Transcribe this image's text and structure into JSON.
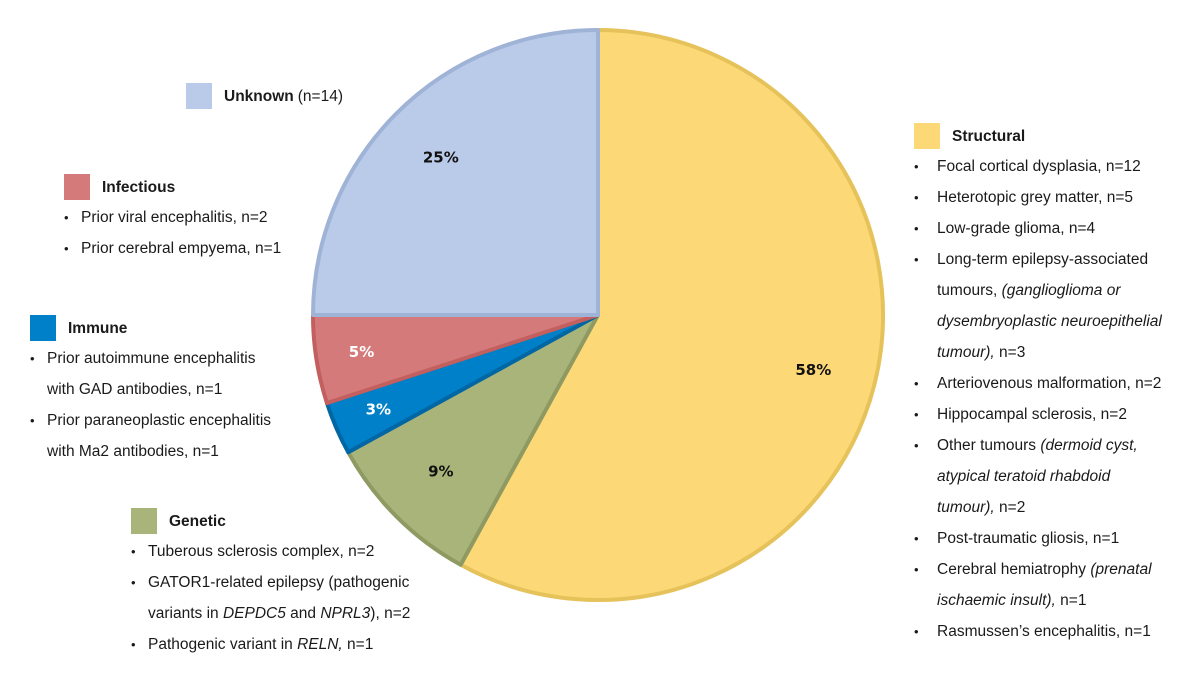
{
  "chart_data": {
    "type": "pie",
    "title": "",
    "slices": [
      {
        "label": "Structural",
        "value": 58,
        "pct_label": "58%",
        "color": "#fcd976",
        "stroke": "#e6c25a"
      },
      {
        "label": "Genetic",
        "value": 9,
        "pct_label": "9%",
        "color": "#a9b47b",
        "stroke": "#8f9a63"
      },
      {
        "label": "Immune",
        "value": 3,
        "pct_label": "3%",
        "color": "#0080c8",
        "stroke": "#0066a4",
        "label_color": "#ffffff"
      },
      {
        "label": "Infectious",
        "value": 5,
        "pct_label": "5%",
        "color": "#d57a7a",
        "stroke": "#c35f5f",
        "label_color": "#ffffff"
      },
      {
        "label": "Unknown",
        "value": 25,
        "pct_label": "25%",
        "color": "#b9cbe9",
        "stroke": "#9fb3d6"
      }
    ]
  },
  "legend": {
    "unknown": {
      "name": "Unknown",
      "count": "(n=14)",
      "color": "#b9cbe9",
      "items": []
    },
    "infectious": {
      "name": "Infectious",
      "color": "#d57a7a",
      "items": [
        "Prior viral encephalitis, n=2",
        "Prior cerebral empyema, n=1"
      ]
    },
    "immune": {
      "name": "Immune",
      "color": "#0080c8",
      "items": [
        "Prior autoimmune encephalitis",
        "with GAD antibodies, n=1",
        "Prior paraneoplastic encephalitis",
        "with Ma2 antibodies, n=1"
      ]
    },
    "genetic": {
      "name": "Genetic",
      "color": "#a9b47b",
      "items": {
        "i0": "Tuberous sclerosis complex, n=2",
        "i1a": "GATOR1-related epilepsy (pathogenic",
        "i1b_pre": "variants in ",
        "i1b_gene1": "DEPDC5",
        "i1b_mid": " and ",
        "i1b_gene2": "NPRL3",
        "i1b_post": "), n=2",
        "i2_pre": "Pathogenic variant in ",
        "i2_gene": "RELN,",
        "i2_post": " n=1"
      }
    },
    "structural": {
      "name": "Structural",
      "color": "#fcd976",
      "items": {
        "fcd": "Focal cortical dysplasia, n=12",
        "hgm": "Heterotopic grey matter, n=5",
        "lgg": "Low-grade glioma, n=4",
        "lt1": "Long-term epilepsy-associated",
        "lt2_pre": "tumours, ",
        "lt2_it": "(ganglioglioma or",
        "lt3_it": "dysembryoplastic neuroepithelial",
        "lt4_it": "tumour),",
        "lt4_post": " n=3",
        "avm": "Arteriovenous malformation, n=2",
        "hs": "Hippocampal sclerosis, n=2",
        "ot1_pre": "Other tumours ",
        "ot1_it": "(dermoid cyst,",
        "ot2_it": "atypical teratoid rhabdoid",
        "ot3_it": "tumour),",
        "ot3_post": " n=2",
        "ptg": "Post-traumatic gliosis, n=1",
        "ch1_pre": "Cerebral hemiatrophy ",
        "ch1_it": "(prenatal",
        "ch2_it": "ischaemic insult),",
        "ch2_post": " n=1",
        "re": "Rasmussen’s encephalitis, n=1"
      }
    }
  }
}
